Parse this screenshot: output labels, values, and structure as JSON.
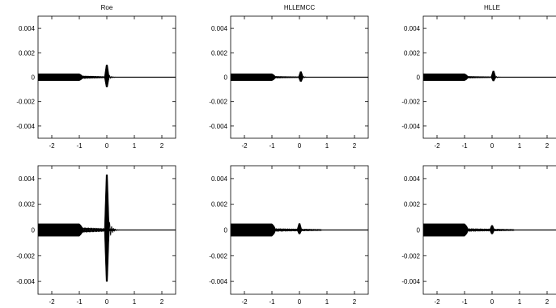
{
  "chart_data": [
    {
      "type": "line",
      "title": "Roe",
      "xlim": [
        -2.5,
        2.5
      ],
      "ylim": [
        -0.005,
        0.005
      ],
      "x_ticks": [
        "-2",
        "-1",
        "0",
        "1",
        "2"
      ],
      "y_ticks": [
        "0.004",
        "0.002",
        "0",
        "-0.002",
        "-0.004"
      ],
      "band_amplitude": 0.0003,
      "band_x_end": -1.0,
      "ripple_amplitude": 0.00012,
      "ripple_x_end": 0.0,
      "spike_x": 0.0,
      "spike_max": 0.001,
      "spike_min": -0.0008,
      "grid": false
    },
    {
      "type": "line",
      "title": "HLLEMCC",
      "xlim": [
        -2.5,
        2.5
      ],
      "ylim": [
        -0.005,
        0.005
      ],
      "x_ticks": [
        "-2",
        "-1",
        "0",
        "1",
        "2"
      ],
      "y_ticks": [
        "0.004",
        "0.002",
        "0",
        "-0.002",
        "-0.004"
      ],
      "band_amplitude": 0.0003,
      "band_x_end": -1.0,
      "ripple_amplitude": 8e-05,
      "ripple_x_end": 0.0,
      "spike_x": 0.05,
      "spike_max": 0.00045,
      "spike_min": -0.00035,
      "grid": false
    },
    {
      "type": "line",
      "title": "HLLE",
      "xlim": [
        -2.5,
        2.5
      ],
      "ylim": [
        -0.005,
        0.005
      ],
      "x_ticks": [
        "-2",
        "-1",
        "0",
        "1",
        "2"
      ],
      "y_ticks": [
        "0.004",
        "0.002",
        "0",
        "-0.002",
        "-0.004"
      ],
      "band_amplitude": 0.0003,
      "band_x_end": -1.0,
      "ripple_amplitude": 8e-05,
      "ripple_x_end": 0.0,
      "spike_x": 0.05,
      "spike_max": 0.0005,
      "spike_min": -0.0003,
      "grid": false
    },
    {
      "type": "line",
      "title": "",
      "xlim": [
        -2.5,
        2.5
      ],
      "ylim": [
        -0.005,
        0.005
      ],
      "x_ticks": [
        "-2",
        "-1",
        "0",
        "1",
        "2"
      ],
      "y_ticks": [
        "0.004",
        "0.002",
        "0",
        "-0.002",
        "-0.004"
      ],
      "band_amplitude": 0.0005,
      "band_x_end": -1.0,
      "ripple_amplitude": 0.0002,
      "ripple_x_end": 0.3,
      "spike_x": 0.0,
      "spike_max": 0.0043,
      "spike_min": -0.004,
      "grid": false
    },
    {
      "type": "line",
      "title": "",
      "xlim": [
        -2.5,
        2.5
      ],
      "ylim": [
        -0.005,
        0.005
      ],
      "x_ticks": [
        "-2",
        "-1",
        "0",
        "1",
        "2"
      ],
      "y_ticks": [
        "0.004",
        "0.002",
        "0",
        "-0.002",
        "-0.004"
      ],
      "band_amplitude": 0.0005,
      "band_x_end": -1.0,
      "ripple_amplitude": 0.00012,
      "ripple_x_end": 0.8,
      "spike_x": 0.0,
      "spike_max": 0.0005,
      "spike_min": -0.0003,
      "grid": false
    },
    {
      "type": "line",
      "title": "",
      "xlim": [
        -2.5,
        2.5
      ],
      "ylim": [
        -0.005,
        0.005
      ],
      "x_ticks": [
        "-2",
        "-1",
        "0",
        "1",
        "2"
      ],
      "y_ticks": [
        "0.004",
        "0.002",
        "0",
        "-0.002",
        "-0.004"
      ],
      "band_amplitude": 0.0005,
      "band_x_end": -1.0,
      "ripple_amplitude": 0.00012,
      "ripple_x_end": 0.8,
      "spike_x": 0.0,
      "spike_max": 0.00035,
      "spike_min": -0.0003,
      "grid": false
    }
  ]
}
